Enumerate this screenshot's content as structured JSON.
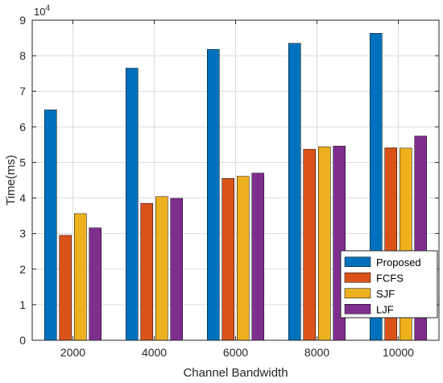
{
  "chart_data": {
    "type": "bar",
    "xlabel": "Channel Bandwidth",
    "ylabel": "Time(ms)",
    "categories": [
      "2000",
      "4000",
      "6000",
      "8000",
      "10000"
    ],
    "ylim": [
      0,
      90000
    ],
    "yticks": [
      0,
      1,
      2,
      3,
      4,
      5,
      6,
      7,
      8,
      9
    ],
    "ytick_scale_base": "10",
    "ytick_scale_exponent": "4",
    "grid": true,
    "legend_position": "bottom-right",
    "series": [
      {
        "name": "Proposed",
        "color": "#0072BD",
        "values": [
          64800,
          76500,
          81800,
          83500,
          86300
        ]
      },
      {
        "name": "FCFS",
        "color": "#D95319",
        "values": [
          29500,
          38500,
          45500,
          53700,
          54100
        ]
      },
      {
        "name": "SJF",
        "color": "#EDB120",
        "values": [
          35600,
          40400,
          46100,
          54400,
          54000
        ]
      },
      {
        "name": "LJF",
        "color": "#7E2F8E",
        "values": [
          31600,
          39900,
          47000,
          54600,
          57400
        ]
      }
    ]
  }
}
